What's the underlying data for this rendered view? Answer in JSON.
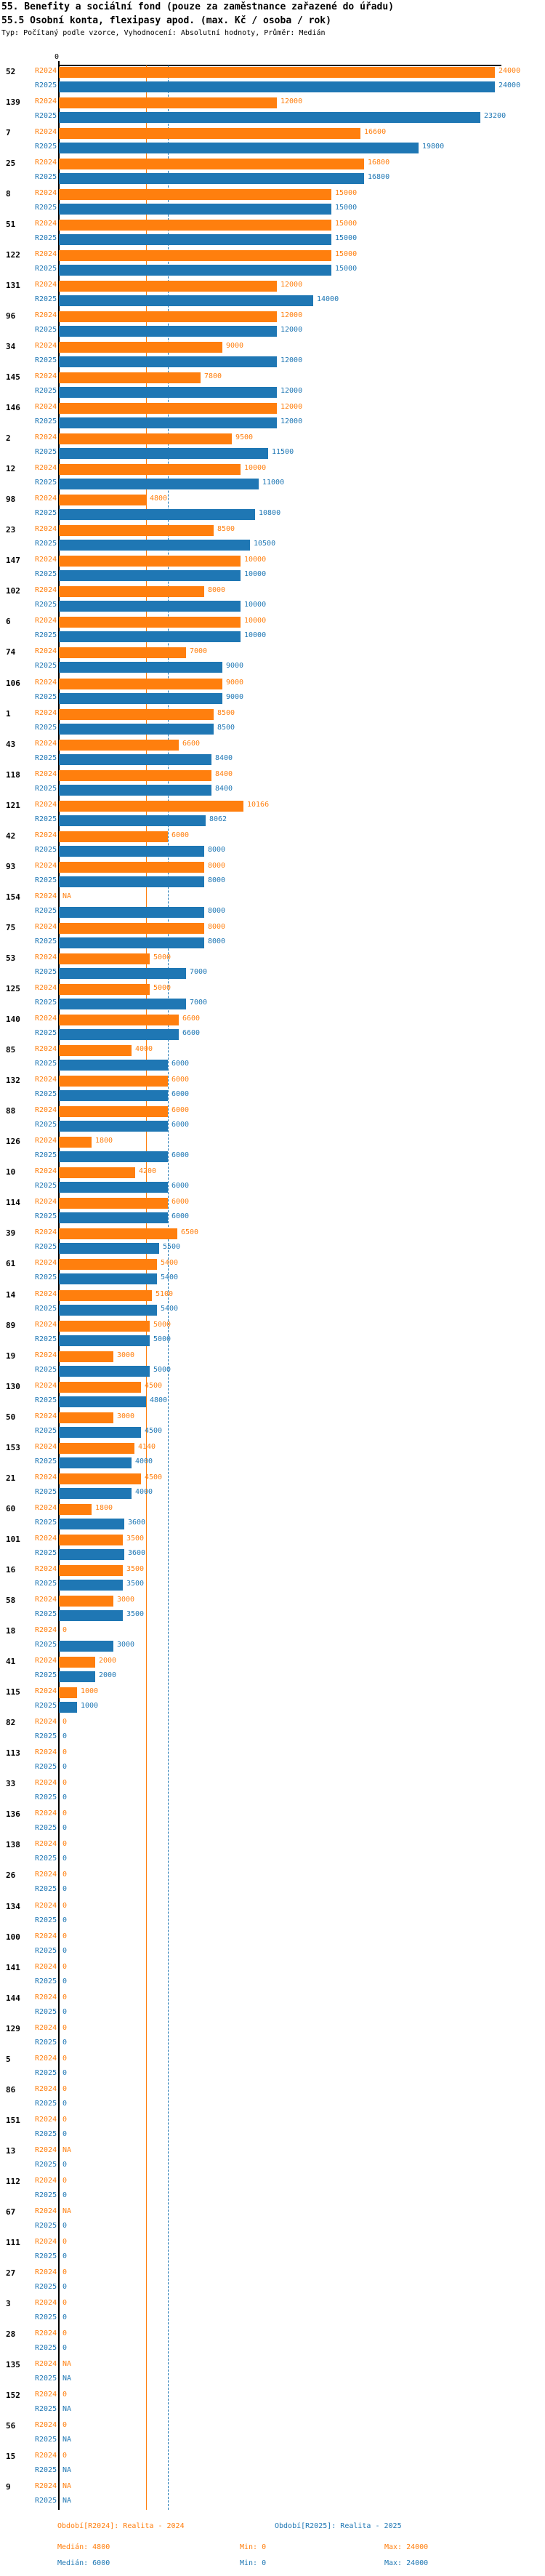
{
  "header": {
    "title": "55. Benefity a sociální fond (pouze za zaměstnance zařazené do úřadu)",
    "subtitle": "55.5 Osobní konta, flexipasy apod. (max. Kč / osoba / rok)",
    "meta": "Typ: Počítaný podle vzorce, Vyhodnocení: Absolutní hodnoty, Průměr: Medián"
  },
  "axis": {
    "zero_label": "0"
  },
  "chart_data": {
    "type": "bar",
    "orientation": "horizontal",
    "xlim": [
      0,
      24000
    ],
    "grid": false,
    "legend_position": "bottom",
    "series": [
      {
        "name": "R2024",
        "color": "#ff7f0e",
        "median": 4800,
        "min": 0,
        "max": 24000
      },
      {
        "name": "R2025",
        "color": "#1f77b4",
        "median": 6000,
        "min": 0,
        "max": 24000
      }
    ],
    "groups": [
      {
        "id": "52",
        "r2024": 24000,
        "r2025": 24000
      },
      {
        "id": "139",
        "r2024": 12000,
        "r2025": 23200
      },
      {
        "id": "7",
        "r2024": 16600,
        "r2025": 19800
      },
      {
        "id": "25",
        "r2024": 16800,
        "r2025": 16800
      },
      {
        "id": "8",
        "r2024": 15000,
        "r2025": 15000
      },
      {
        "id": "51",
        "r2024": 15000,
        "r2025": 15000
      },
      {
        "id": "122",
        "r2024": 15000,
        "r2025": 15000
      },
      {
        "id": "131",
        "r2024": 12000,
        "r2025": 14000
      },
      {
        "id": "96",
        "r2024": 12000,
        "r2025": 12000
      },
      {
        "id": "34",
        "r2024": 9000,
        "r2025": 12000
      },
      {
        "id": "145",
        "r2024": 7800,
        "r2025": 12000
      },
      {
        "id": "146",
        "r2024": 12000,
        "r2025": 12000
      },
      {
        "id": "2",
        "r2024": 9500,
        "r2025": 11500
      },
      {
        "id": "12",
        "r2024": 10000,
        "r2025": 11000
      },
      {
        "id": "98",
        "r2024": 4800,
        "r2025": 10800
      },
      {
        "id": "23",
        "r2024": 8500,
        "r2025": 10500
      },
      {
        "id": "147",
        "r2024": 10000,
        "r2025": 10000
      },
      {
        "id": "102",
        "r2024": 8000,
        "r2025": 10000
      },
      {
        "id": "6",
        "r2024": 10000,
        "r2025": 10000
      },
      {
        "id": "74",
        "r2024": 7000,
        "r2025": 9000
      },
      {
        "id": "106",
        "r2024": 9000,
        "r2025": 9000
      },
      {
        "id": "1",
        "r2024": 8500,
        "r2025": 8500
      },
      {
        "id": "43",
        "r2024": 6600,
        "r2025": 8400
      },
      {
        "id": "118",
        "r2024": 8400,
        "r2025": 8400
      },
      {
        "id": "121",
        "r2024": 10166,
        "r2025": 8062
      },
      {
        "id": "42",
        "r2024": 6000,
        "r2025": 8000
      },
      {
        "id": "93",
        "r2024": 8000,
        "r2025": 8000
      },
      {
        "id": "154",
        "r2024": "NA",
        "r2025": 8000
      },
      {
        "id": "75",
        "r2024": 8000,
        "r2025": 8000
      },
      {
        "id": "53",
        "r2024": 5000,
        "r2025": 7000
      },
      {
        "id": "125",
        "r2024": 5000,
        "r2025": 7000
      },
      {
        "id": "140",
        "r2024": 6600,
        "r2025": 6600
      },
      {
        "id": "85",
        "r2024": 4000,
        "r2025": 6000
      },
      {
        "id": "132",
        "r2024": 6000,
        "r2025": 6000
      },
      {
        "id": "88",
        "r2024": 6000,
        "r2025": 6000
      },
      {
        "id": "126",
        "r2024": 1800,
        "r2025": 6000
      },
      {
        "id": "10",
        "r2024": 4200,
        "r2025": 6000
      },
      {
        "id": "114",
        "r2024": 6000,
        "r2025": 6000
      },
      {
        "id": "39",
        "r2024": 6500,
        "r2025": 5500
      },
      {
        "id": "61",
        "r2024": 5400,
        "r2025": 5400
      },
      {
        "id": "14",
        "r2024": 5100,
        "r2025": 5400
      },
      {
        "id": "89",
        "r2024": 5000,
        "r2025": 5000
      },
      {
        "id": "19",
        "r2024": 3000,
        "r2025": 5000
      },
      {
        "id": "130",
        "r2024": 4500,
        "r2025": 4800
      },
      {
        "id": "50",
        "r2024": 3000,
        "r2025": 4500
      },
      {
        "id": "153",
        "r2024": 4140,
        "r2025": 4000
      },
      {
        "id": "21",
        "r2024": 4500,
        "r2025": 4000
      },
      {
        "id": "60",
        "r2024": 1800,
        "r2025": 3600
      },
      {
        "id": "101",
        "r2024": 3500,
        "r2025": 3600
      },
      {
        "id": "16",
        "r2024": 3500,
        "r2025": 3500
      },
      {
        "id": "58",
        "r2024": 3000,
        "r2025": 3500
      },
      {
        "id": "18",
        "r2024": 0,
        "r2025": 3000
      },
      {
        "id": "41",
        "r2024": 2000,
        "r2025": 2000
      },
      {
        "id": "115",
        "r2024": 1000,
        "r2025": 1000
      },
      {
        "id": "82",
        "r2024": 0,
        "r2025": 0
      },
      {
        "id": "113",
        "r2024": 0,
        "r2025": 0
      },
      {
        "id": "33",
        "r2024": 0,
        "r2025": 0
      },
      {
        "id": "136",
        "r2024": 0,
        "r2025": 0
      },
      {
        "id": "138",
        "r2024": 0,
        "r2025": 0
      },
      {
        "id": "26",
        "r2024": 0,
        "r2025": 0
      },
      {
        "id": "134",
        "r2024": 0,
        "r2025": 0
      },
      {
        "id": "100",
        "r2024": 0,
        "r2025": 0
      },
      {
        "id": "141",
        "r2024": 0,
        "r2025": 0
      },
      {
        "id": "144",
        "r2024": 0,
        "r2025": 0
      },
      {
        "id": "129",
        "r2024": 0,
        "r2025": 0
      },
      {
        "id": "5",
        "r2024": 0,
        "r2025": 0
      },
      {
        "id": "86",
        "r2024": 0,
        "r2025": 0
      },
      {
        "id": "151",
        "r2024": 0,
        "r2025": 0
      },
      {
        "id": "13",
        "r2024": "NA",
        "r2025": 0
      },
      {
        "id": "112",
        "r2024": 0,
        "r2025": 0
      },
      {
        "id": "67",
        "r2024": "NA",
        "r2025": 0
      },
      {
        "id": "111",
        "r2024": 0,
        "r2025": 0
      },
      {
        "id": "27",
        "r2024": 0,
        "r2025": 0
      },
      {
        "id": "3",
        "r2024": 0,
        "r2025": 0
      },
      {
        "id": "28",
        "r2024": 0,
        "r2025": 0
      },
      {
        "id": "135",
        "r2024": "NA",
        "r2025": "NA"
      },
      {
        "id": "152",
        "r2024": 0,
        "r2025": "NA"
      },
      {
        "id": "56",
        "r2024": 0,
        "r2025": "NA"
      },
      {
        "id": "15",
        "r2024": 0,
        "r2025": "NA"
      },
      {
        "id": "9",
        "r2024": "NA",
        "r2025": "NA"
      }
    ]
  },
  "legend": {
    "series": [
      {
        "label": "Období[R2024]: Realita - 2024",
        "median": "Medián: 4800",
        "min": "Min: 0",
        "max": "Max: 24000"
      },
      {
        "label": "Období[R2025]: Realita - 2025",
        "median": "Medián: 6000",
        "min": "Min: 0",
        "max": "Max: 24000"
      }
    ]
  }
}
